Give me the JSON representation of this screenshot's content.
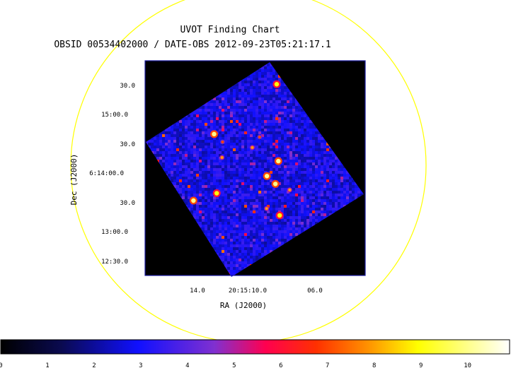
{
  "chart_data": {
    "type": "heatmap",
    "title": "UVOT Finding Chart",
    "subtitle": "OBSID 00534402000 / DATE-OBS 2012-09-23T05:21:17.1",
    "xlabel": "RA (J2000)",
    "ylabel": "Dec (J2000)",
    "x_ticks": [
      "14.0",
      "20:15:10.0",
      "06.0"
    ],
    "y_ticks": [
      "30.0",
      "15:00.0",
      "30.0",
      "6:14:00.0",
      "30.0",
      "13:00.0",
      "12:30.0"
    ],
    "colorbar": {
      "ticks": [
        "0",
        "1",
        "2",
        "3",
        "4",
        "5",
        "6",
        "7",
        "8",
        "9",
        "10"
      ],
      "range": [
        0,
        10.9
      ],
      "colormap": "heat"
    },
    "circle_color": "#ffff00",
    "frame_color": "#1a1aa0",
    "sources": [
      {
        "ra_idx": 0.42,
        "dec_idx": 0.19,
        "value": 10
      },
      {
        "ra_idx": 0.69,
        "dec_idx": 0.55,
        "value": 10
      },
      {
        "ra_idx": 0.57,
        "dec_idx": 0.59,
        "value": 10
      },
      {
        "ra_idx": 0.59,
        "dec_idx": 0.66,
        "value": 10
      },
      {
        "ra_idx": 0.22,
        "dec_idx": 0.51,
        "value": 9
      },
      {
        "ra_idx": 0.06,
        "dec_idx": 0.47,
        "value": 10
      },
      {
        "ra_idx": 0.96,
        "dec_idx": 0.14,
        "value": 9
      },
      {
        "ra_idx": 0.38,
        "dec_idx": 0.34,
        "value": 8
      },
      {
        "ra_idx": 0.5,
        "dec_idx": 0.84,
        "value": 9
      },
      {
        "ra_idx": 0.45,
        "dec_idx": 0.76,
        "value": 8
      },
      {
        "ra_idx": 0.65,
        "dec_idx": 0.74,
        "value": 8
      },
      {
        "ra_idx": 0.59,
        "dec_idx": 0.39,
        "value": 8
      },
      {
        "ra_idx": 0.44,
        "dec_idx": 0.26,
        "value": 7
      },
      {
        "ra_idx": 0.67,
        "dec_idx": 0.36,
        "value": 7
      }
    ]
  }
}
